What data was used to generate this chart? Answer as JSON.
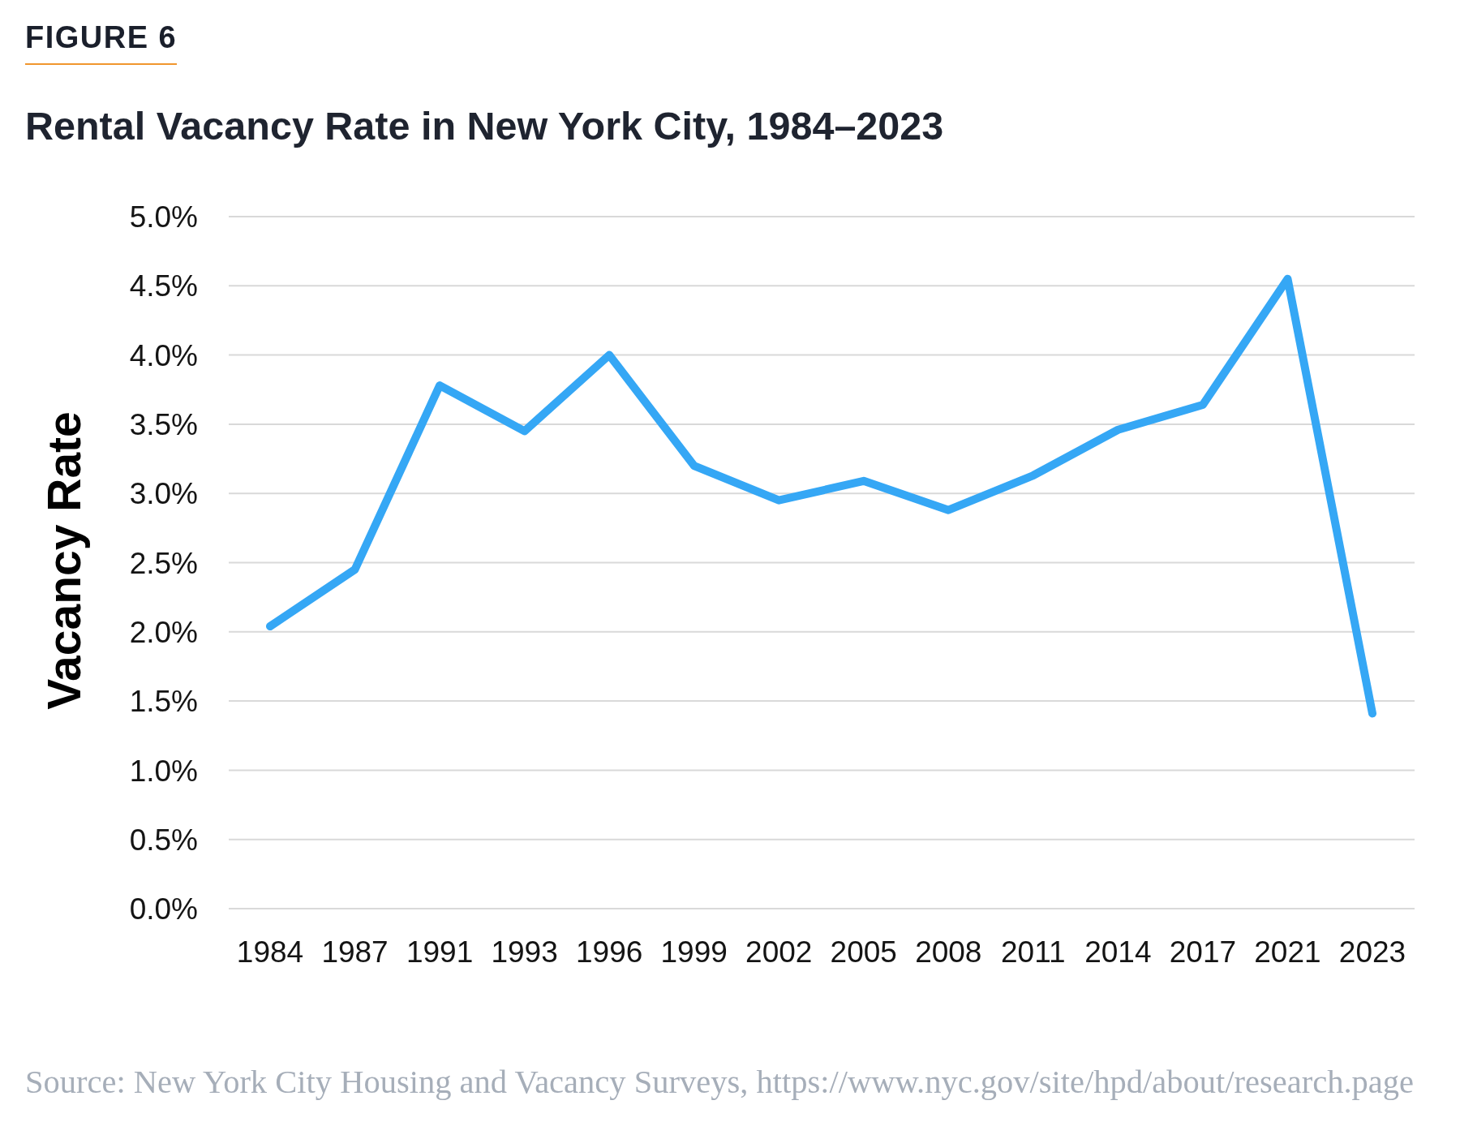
{
  "chart_data": {
    "type": "line",
    "title": "Rental Vacancy Rate in New York City, 1984–2023",
    "ylabel": "Vacancy Rate",
    "annotations": [
      "FIGURE 6",
      "Source: New York City Housing and Vacancy Surveys, https://www.nyc.gov/site/hpd/about/research.page"
    ],
    "categories": [
      "1984",
      "1987",
      "1991",
      "1993",
      "1996",
      "1999",
      "2002",
      "2005",
      "2008",
      "2011",
      "2014",
      "2017",
      "2021",
      "2023"
    ],
    "values": [
      2.04,
      2.45,
      3.78,
      3.45,
      4.0,
      3.2,
      2.95,
      3.09,
      2.88,
      3.13,
      3.46,
      3.64,
      4.55,
      1.41
    ],
    "color": "#35a7f5",
    "ylim": [
      0,
      5
    ],
    "yticks": [
      {
        "value": 0,
        "label": "0.0%"
      },
      {
        "value": 0.5,
        "label": "0.5%"
      },
      {
        "value": 1,
        "label": "1.0%"
      },
      {
        "value": 1.5,
        "label": "1.5%"
      },
      {
        "value": 2,
        "label": "2.0%"
      },
      {
        "value": 2.5,
        "label": "2.5%"
      },
      {
        "value": 3,
        "label": "3.0%"
      },
      {
        "value": 3.5,
        "label": "3.5%"
      },
      {
        "value": 4,
        "label": "4.0%"
      },
      {
        "value": 4.5,
        "label": "4.5%"
      },
      {
        "value": 5,
        "label": "5.0%"
      }
    ],
    "grid": "y",
    "marker": "none",
    "line_style": "solid"
  }
}
